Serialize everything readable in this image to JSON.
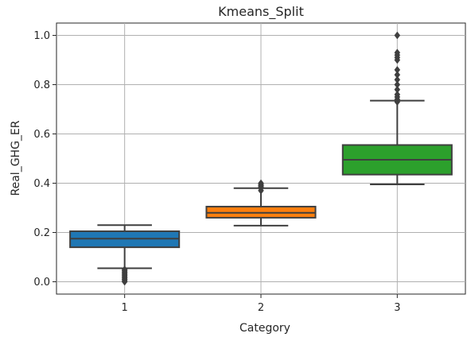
{
  "chart_data": {
    "type": "box",
    "title": "Kmeans_Split",
    "xlabel": "Category",
    "ylabel": "Real_GHG_ER",
    "categories": [
      "1",
      "2",
      "3"
    ],
    "ylim": [
      -0.05,
      1.05
    ],
    "yticks": [
      "0.0",
      "0.2",
      "0.4",
      "0.6",
      "0.8",
      "1.0"
    ],
    "grid": true,
    "boxes": [
      {
        "category": "1",
        "color": "#1f77b4",
        "whisker_low": 0.055,
        "q1": 0.14,
        "median": 0.175,
        "q3": 0.205,
        "whisker_high": 0.23,
        "outliers": [
          0.0,
          0.005,
          0.01,
          0.015,
          0.02,
          0.025,
          0.03,
          0.035,
          0.04,
          0.045,
          0.05
        ]
      },
      {
        "category": "2",
        "color": "#ff7f0e",
        "whisker_low": 0.228,
        "q1": 0.26,
        "median": 0.28,
        "q3": 0.305,
        "whisker_high": 0.38,
        "outliers": [
          0.37,
          0.38,
          0.385,
          0.39,
          0.395,
          0.4
        ]
      },
      {
        "category": "3",
        "color": "#2ca02c",
        "whisker_low": 0.395,
        "q1": 0.435,
        "median": 0.495,
        "q3": 0.555,
        "whisker_high": 0.735,
        "outliers": [
          0.73,
          0.74,
          0.75,
          0.76,
          0.78,
          0.8,
          0.82,
          0.84,
          0.86,
          0.9,
          0.91,
          0.92,
          0.93,
          1.0
        ]
      }
    ]
  }
}
